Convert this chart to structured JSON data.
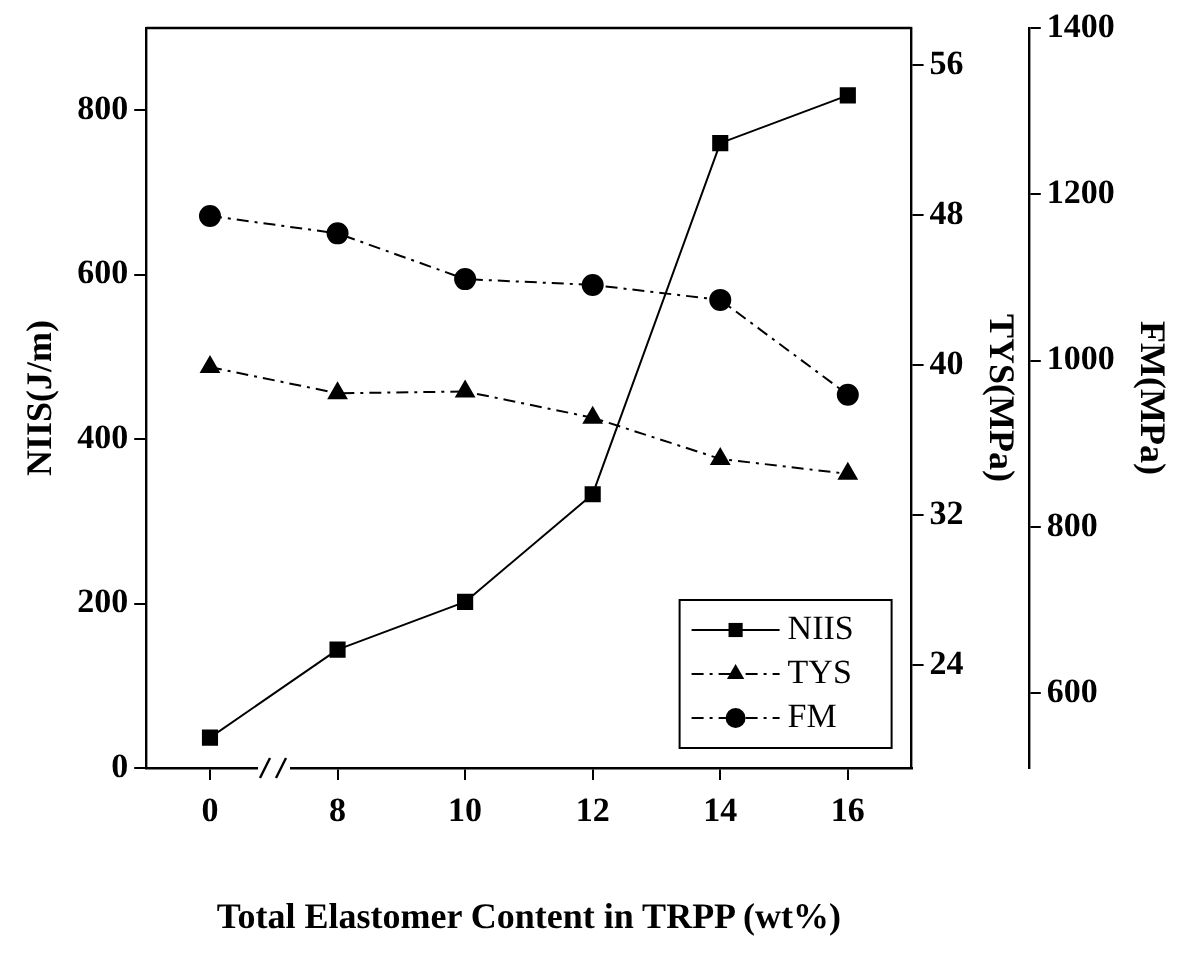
{
  "chart_data": {
    "type": "line",
    "xlabel": "Total Elastomer Content in TRPP (wt%)",
    "ylabel": "NIIS(J/m)",
    "y2label": "TYS(MPa)",
    "y3label": "FM(MPa)",
    "categories": [
      "0",
      "8",
      "10",
      "12",
      "14",
      "16"
    ],
    "series": [
      {
        "name": "NIIS",
        "color": "#000000",
        "marker": "square",
        "line_style": "solid",
        "values": [
          37,
          144,
          202,
          333,
          760,
          818
        ]
      },
      {
        "name": "TYS",
        "color": "#000000",
        "marker": "triangle",
        "line_style": "dashed",
        "axis": "y2",
        "values": [
          39.9,
          38.5,
          38.6,
          37.2,
          35.0,
          34.2
        ]
      },
      {
        "name": "FM",
        "color": "#000000",
        "marker": "circle",
        "line_style": "dashed",
        "axis": "y3",
        "values": [
          1174,
          1153,
          1098,
          1091,
          1073,
          959
        ]
      }
    ],
    "ylim": [
      0,
      900
    ],
    "yticks": [
      0,
      200,
      400,
      600,
      800
    ],
    "y2lim": [
      18.5,
      58
    ],
    "y2ticks": [
      24,
      32,
      40,
      48,
      56
    ],
    "y3lim": [
      510,
      1400
    ],
    "y3ticks": [
      600,
      800,
      1000,
      1200,
      1400
    ],
    "grid": false,
    "legend": "bottom right"
  }
}
